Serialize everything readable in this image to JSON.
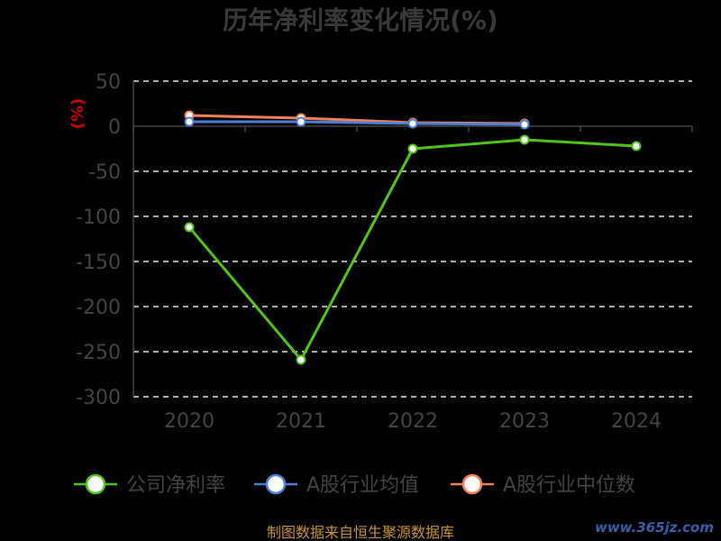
{
  "chart_data": {
    "type": "line",
    "title": "历年净利率变化情况(%)",
    "ylabel": "(%)",
    "xlabel": "",
    "categories": [
      "2020",
      "2021",
      "2022",
      "2023",
      "2024"
    ],
    "ylim": [
      -300,
      50
    ],
    "yticks": [
      50,
      0,
      -50,
      -100,
      -150,
      -200,
      -250,
      -300
    ],
    "grid": true,
    "legend_position": "bottom",
    "series": [
      {
        "name": "公司净利率",
        "color": "#52c41a",
        "values": [
          -112,
          -259,
          -25,
          -15,
          -22
        ]
      },
      {
        "name": "A股行业均值",
        "color": "#4f7fd9",
        "values": [
          5,
          5,
          3,
          2,
          null
        ]
      },
      {
        "name": "A股行业中位数",
        "color": "#f2825a",
        "values": [
          12,
          9,
          4,
          3,
          null
        ]
      }
    ]
  },
  "footer": {
    "source": "制图数据来自恒生聚源数据库",
    "watermark": "www.365jz.com"
  }
}
